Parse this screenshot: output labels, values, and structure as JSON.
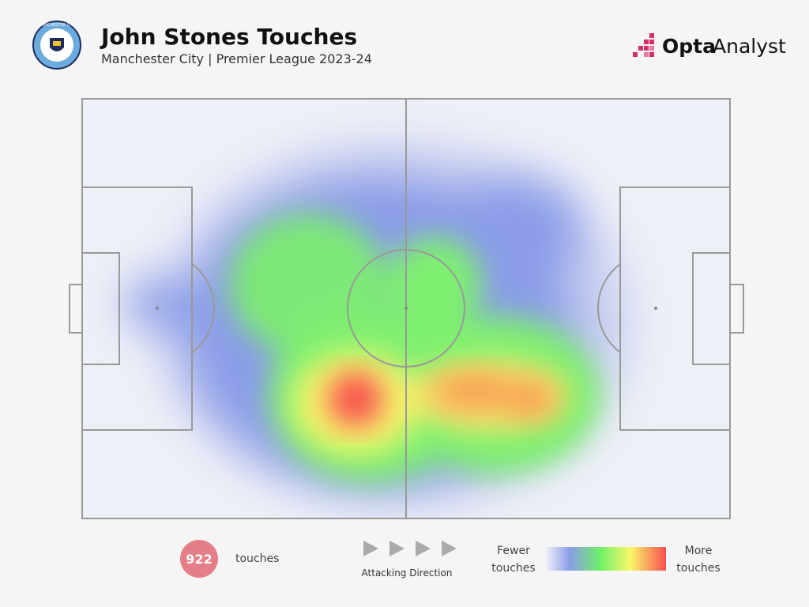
{
  "header": {
    "title": "John Stones Touches",
    "subtitle": "Manchester City | Premier League 2023-24",
    "brand_bold": "Opta",
    "brand_light": "Analyst",
    "crest_text": "MANCHESTER CITY"
  },
  "stats": {
    "touches_count": 922,
    "touches_label": "touches"
  },
  "direction": {
    "label": "Attacking Direction"
  },
  "legend": {
    "low": "Fewer touches",
    "high": "More touches"
  }
}
